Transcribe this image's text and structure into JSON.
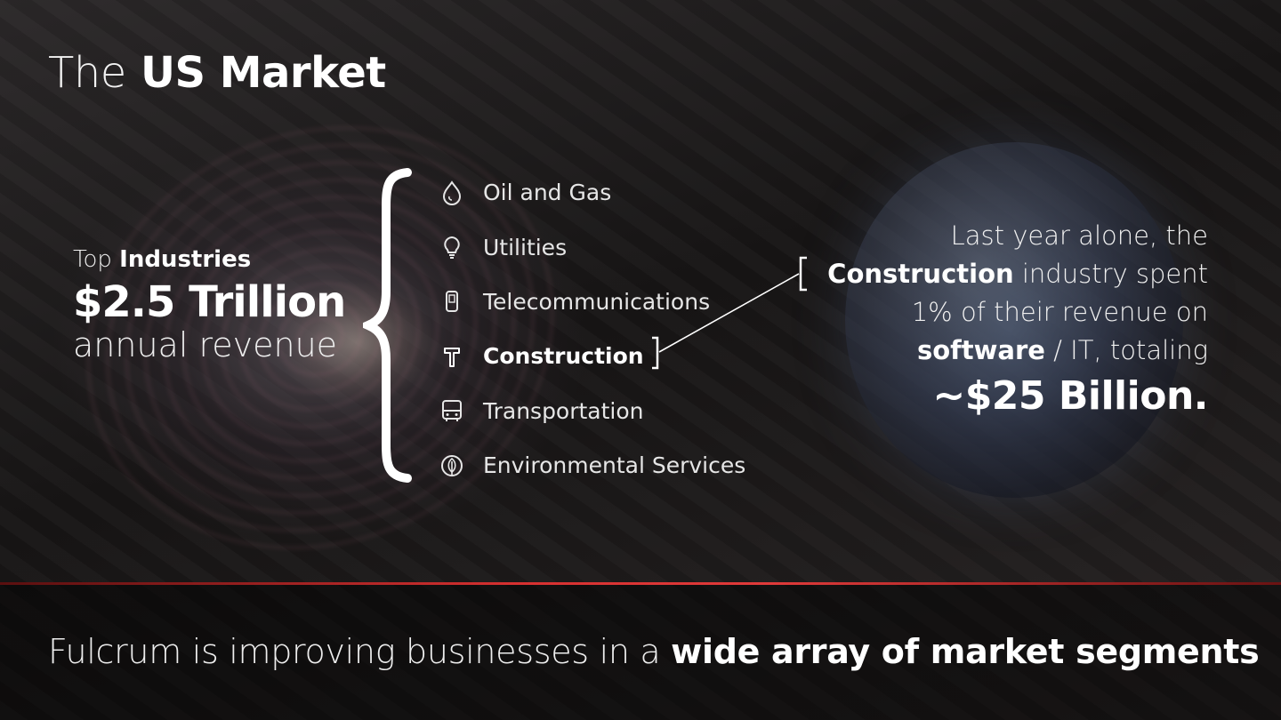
{
  "title": {
    "light": "The",
    "bold": "US Market"
  },
  "left_stat": {
    "label_light": "Top",
    "label_bold": "Industries",
    "amount": "$2.5 Trillion",
    "caption": "annual revenue"
  },
  "industries": [
    {
      "label": "Oil and Gas",
      "icon": "drop-icon"
    },
    {
      "label": "Utilities",
      "icon": "lightbulb-icon"
    },
    {
      "label": "Telecommunications",
      "icon": "phone-icon"
    },
    {
      "label": "Construction",
      "icon": "hammer-icon",
      "highlighted": true
    },
    {
      "label": "Transportation",
      "icon": "bus-icon"
    },
    {
      "label": "Environmental Services",
      "icon": "leaf-icon"
    }
  ],
  "right_stat": {
    "line1": "Last year alone, the",
    "line2_bold": "Construction",
    "line2_rest": " industry spent",
    "line3": "1% of their revenue on",
    "line4_bold": "software",
    "line4_rest": " / IT, totaling",
    "amount": "~$25 Billion."
  },
  "tagline": {
    "light": "Fulcrum is improving businesses in a ",
    "bold": "wide array of market segments"
  },
  "colors": {
    "accent_red": "#e03a3a",
    "text": "#ffffff"
  }
}
